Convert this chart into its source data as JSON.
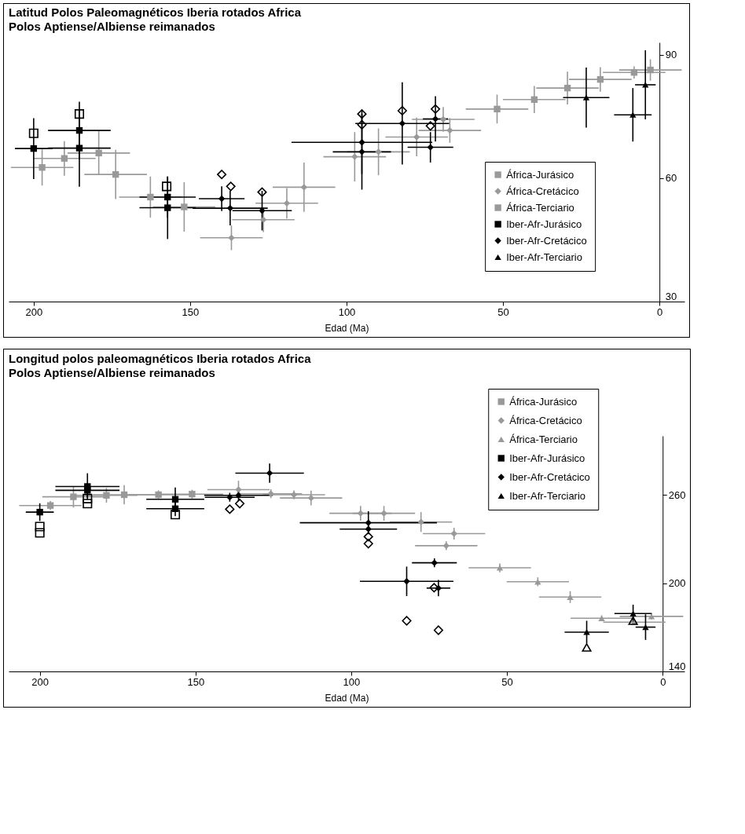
{
  "chart_data": [
    {
      "type": "scatter",
      "title": "Latitud Polos Paleomagnéticos Iberia rotados Africa",
      "subtitle": "Polos Aptiense/Albiense reimanados",
      "xlabel": "Edad (Ma)",
      "xlim": [
        208,
        -8
      ],
      "xticks": [
        200,
        150,
        100,
        50,
        0
      ],
      "ylim": [
        30,
        93
      ],
      "yticks": [
        30,
        60,
        90
      ],
      "legend": "bottom right",
      "series": [
        {
          "name": "África-Jurásico",
          "color": "#999999",
          "marker": "square",
          "x": [
            197.3,
            190.2,
            179.2,
            173.8,
            162.7,
            151.9
          ],
          "values": [
            62.6,
            64.8,
            66.1,
            60.9,
            55.4,
            53.0
          ],
          "errors": [
            4.4,
            4.2,
            5.3,
            6,
            5,
            6
          ],
          "xerrors": [
            10,
            10,
            10,
            10,
            10,
            10
          ]
        },
        {
          "name": "África-Cretácico",
          "color": "#999999",
          "marker": "diamond",
          "x": [
            136.8,
            126.6,
            119.1,
            113.6,
            97.4,
            89.8,
            77.6,
            69.1,
            67.0
          ],
          "values": [
            45.5,
            49.9,
            53.9,
            57.8,
            65.2,
            66.4,
            70.0,
            74.3,
            71.6
          ],
          "errors": [
            3,
            3,
            3.7,
            6,
            6,
            5.7,
            4.7,
            3,
            3
          ],
          "xerrors": [
            10,
            10,
            10,
            10,
            10,
            10,
            10,
            10,
            10
          ]
        },
        {
          "name": "África-Terciario",
          "color": "#999999",
          "marker": "square",
          "x": [
            51.9,
            40.0,
            29.4,
            18.9,
            8.1,
            2.9
          ],
          "values": [
            76.8,
            79.1,
            81.9,
            84.0,
            85.7,
            86.3
          ],
          "errors": [
            3.5,
            3.3,
            4,
            3,
            1.5,
            2.6
          ],
          "xerrors": [
            10,
            10,
            10,
            10,
            10,
            10
          ]
        },
        {
          "name": "Iber-Afr-Jurásico",
          "color": "#000000",
          "marker": "square",
          "x": [
            200,
            185.4,
            185.4,
            157.2,
            157.2
          ],
          "values": [
            67.2,
            67.3,
            71.6,
            55.4,
            52.8
          ],
          "errors": [
            7.4,
            9.4,
            7,
            5,
            7.6
          ],
          "xerrors": [
            6,
            10,
            10,
            9,
            9
          ]
        },
        {
          "name": "Iber-Afr-Cretácico",
          "color": "#000000",
          "marker": "diamond",
          "x": [
            139.9,
            137.2,
            127.0,
            95.1,
            95.1,
            82.2,
            71.6,
            73.2
          ],
          "values": [
            55.0,
            52.7,
            52.1,
            68.7,
            66.4,
            73.3,
            74.4,
            67.5
          ],
          "errors": [
            3,
            4.2,
            4.8,
            7.7,
            9.2,
            10,
            5.5,
            3.7
          ],
          "xerrors": [
            7.3,
            12,
            9.5,
            22.5,
            9.3,
            15,
            4,
            7.3
          ]
        },
        {
          "name": "Iber-Afr-Terciario",
          "color": "#000000",
          "marker": "triangle",
          "x": [
            23.4,
            8.5,
            4.5
          ],
          "values": [
            79.6,
            75.4,
            82.7
          ],
          "errors": [
            7.3,
            6.5,
            8.4
          ],
          "xerrors": [
            7.4,
            6,
            3.3
          ]
        },
        {
          "color": "#000000",
          "marker": "square-open",
          "x": [
            200,
            185.4,
            157.5
          ],
          "values": [
            70.9,
            75.6,
            58.0
          ]
        },
        {
          "color": "#000000",
          "marker": "diamond-open",
          "x": [
            139.9,
            137.0,
            127.0,
            95.1,
            95.1,
            82.2,
            71.6,
            73.2
          ],
          "values": [
            60.9,
            58.0,
            56.6,
            75.6,
            73.0,
            76.4,
            76.8,
            72.7
          ]
        }
      ]
    },
    {
      "type": "scatter",
      "title": "Longitud polos paleomagnéticos Iberia rotados Africa",
      "subtitle": "Polos  Aptiense/Albiense reimanados",
      "xlabel": "Edad (Ma)",
      "xlim": [
        210,
        -7
      ],
      "xticks": [
        200,
        150,
        100,
        50,
        0
      ],
      "ylim": [
        140,
        300
      ],
      "yticks": [
        140,
        200,
        260
      ],
      "legend": "top right",
      "series": [
        {
          "name": "África-Jurásico",
          "color": "#999999",
          "marker": "square",
          "x": [
            196.6,
            189.2,
            178.6,
            172.9,
            161.9,
            151.1
          ],
          "values": [
            252.7,
            258.6,
            259.6,
            260.0,
            260.0,
            260.4
          ],
          "errors": [
            3,
            7.3,
            5,
            6.5,
            3,
            3
          ],
          "xerrors": [
            10,
            10,
            10,
            10,
            10,
            10
          ]
        },
        {
          "name": "África-Cretácico",
          "color": "#999999",
          "marker": "diamond",
          "x": [
            136.2,
            125.8,
            118.4,
            112.9,
            97.0,
            89.5,
            77.6,
            67.0,
            69.5
          ],
          "values": [
            263.5,
            260.7,
            260.0,
            257.8,
            247.4,
            247.4,
            241.5,
            233.6,
            225.4
          ],
          "errors": [
            6,
            3,
            3,
            5,
            5,
            5,
            6.7,
            4,
            3
          ],
          "xerrors": [
            10,
            10,
            10,
            10,
            10,
            10,
            10,
            10,
            10
          ]
        },
        {
          "name": "África-Terciario",
          "color": "#999999",
          "marker": "triangle",
          "x": [
            52.3,
            40.1,
            29.7,
            19.6,
            9.1,
            3.6
          ],
          "values": [
            210.4,
            200.9,
            190.5,
            176.1,
            173.5,
            177.4
          ],
          "errors": [
            3,
            3,
            4,
            2,
            2,
            2
          ],
          "xerrors": [
            10,
            10,
            10,
            10,
            10,
            10.2
          ]
        },
        {
          "name": "Iber-Afr-Jurásico",
          "color": "#000000",
          "marker": "square",
          "x": [
            200,
            184.7,
            184.7,
            156.5,
            156.5
          ],
          "values": [
            248.2,
            265.6,
            263.0,
            256.9,
            250.5
          ],
          "errors": [
            6,
            9,
            5,
            8,
            5
          ],
          "xerrors": [
            4.5,
            10.3,
            10.3,
            9.3,
            9.3
          ]
        },
        {
          "name": "Iber-Afr-Cretácico",
          "color": "#000000",
          "marker": "diamond",
          "x": [
            126.2,
            139.0,
            136.2,
            94.5,
            94.5,
            73.3,
            82.2,
            72.0
          ],
          "values": [
            274.7,
            258.3,
            259.6,
            241.0,
            236.7,
            213.8,
            201.2,
            196.6
          ],
          "errors": [
            6.5,
            3,
            4,
            7.8,
            3,
            3,
            10,
            5.5
          ],
          "xerrors": [
            11,
            8,
            11,
            22,
            9.2,
            7.2,
            15,
            3.8
          ]
        },
        {
          "name": "Iber-Afr-Terciario",
          "color": "#000000",
          "marker": "triangle",
          "x": [
            24.4,
            9.5,
            5.5
          ],
          "values": [
            166.7,
            179.3,
            170.1
          ],
          "errors": [
            7.7,
            6,
            8.7
          ],
          "xerrors": [
            7.1,
            6,
            3.2
          ]
        },
        {
          "color": "#000000",
          "marker": "square-open",
          "x": [
            200,
            200,
            184.7,
            184.7,
            156.5
          ],
          "values": [
            238.4,
            234.1,
            257.4,
            254.0,
            246.5
          ]
        },
        {
          "color": "#000000",
          "marker": "diamond-open",
          "x": [
            139.0,
            135.8,
            94.5,
            94.5,
            82.2,
            72.0,
            73.4
          ],
          "values": [
            250.2,
            254.0,
            231.5,
            226.8,
            174.4,
            168.0,
            196.9
          ]
        },
        {
          "color": "#000000",
          "marker": "triangle-open",
          "x": [
            24.4,
            9.5
          ],
          "values": [
            156.3,
            174.4
          ]
        }
      ]
    }
  ]
}
